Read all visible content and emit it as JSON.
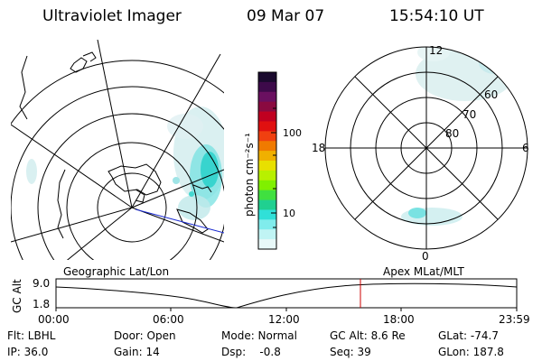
{
  "header": {
    "title": "Ultraviolet Imager",
    "date": "09 Mar 07",
    "time": "15:54:10 UT"
  },
  "colorbar": {
    "unit_label": "photon cm⁻²s⁻¹",
    "ticks": [
      "100",
      "10"
    ],
    "colors": [
      "#1a0a2e",
      "#3d0a4a",
      "#6a1060",
      "#8a0a40",
      "#c00020",
      "#e01010",
      "#f04010",
      "#f07a00",
      "#f0b000",
      "#e8e000",
      "#b8f000",
      "#80f000",
      "#40e040",
      "#20d090",
      "#30e0d8",
      "#80ecec",
      "#c0f4f4",
      "#e8f8f8"
    ]
  },
  "left_map": {
    "label": "Geographic Lat/Lon"
  },
  "right_map": {
    "label": "Apex MLat/MLT",
    "mlt_labels": [
      "12",
      "18",
      "6",
      "0"
    ],
    "lat_labels": [
      "60",
      "70",
      "80"
    ]
  },
  "timeline": {
    "ylabel": "GC Alt",
    "yticks": [
      "9.0",
      "1.8"
    ],
    "xticks": [
      "00:00",
      "06:00",
      "12:00",
      "18:00",
      "23:59"
    ],
    "marker_time": "15:54"
  },
  "info": {
    "flt": "Flt: LBHL",
    "ip": "IP: 36.0",
    "door": "Door: Open",
    "gain": "Gain: 14",
    "mode": "Mode: Normal",
    "dsp": "Dsp:    -0.8",
    "gcalt": "GC Alt: 8.6 Re",
    "seq": "Seq: 39",
    "glat": "GLat: -74.7",
    "glon": "GLon: 187.8"
  }
}
